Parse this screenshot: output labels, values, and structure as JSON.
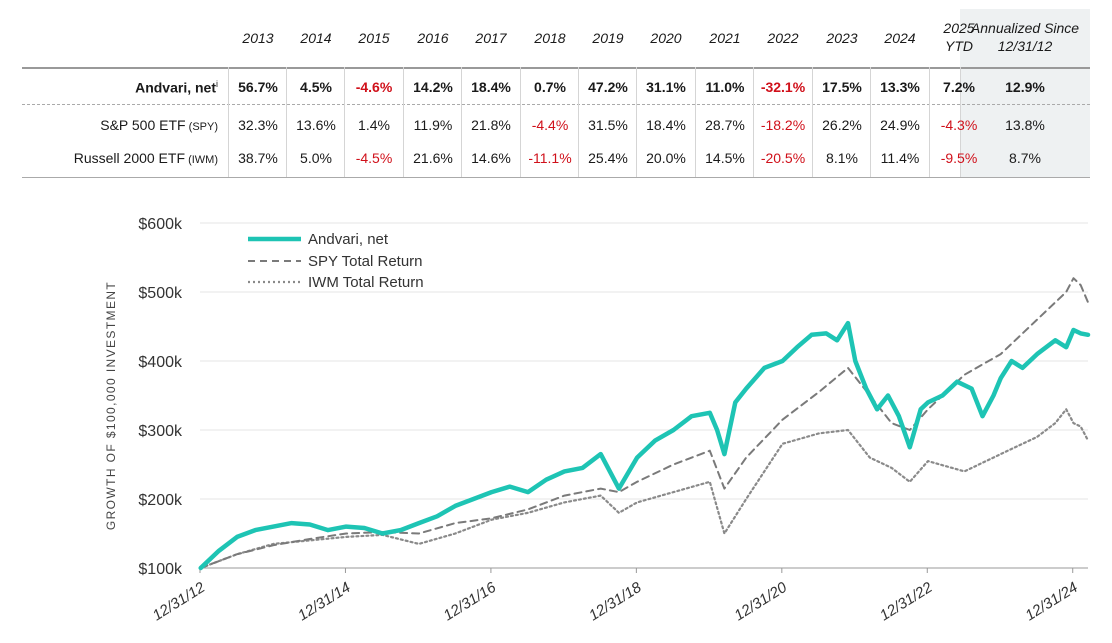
{
  "table": {
    "columns": [
      "2013",
      "2014",
      "2015",
      "2016",
      "2017",
      "2018",
      "2019",
      "2020",
      "2021",
      "2022",
      "2023",
      "2024"
    ],
    "ytd_col": {
      "line1": "2025",
      "line2": "YTD"
    },
    "annual_col": {
      "line1": "Annualized Since",
      "line2": "12/31/12"
    },
    "rows": [
      {
        "label": "Andvari, net",
        "sup": "i",
        "bold": true,
        "values": [
          "56.7%",
          "4.5%",
          "-4.6%",
          "14.2%",
          "18.4%",
          "0.7%",
          "47.2%",
          "31.1%",
          "11.0%",
          "-32.1%",
          "17.5%",
          "13.3%",
          "7.2%"
        ],
        "annual": "12.9%"
      },
      {
        "label": "S&P 500 ETF",
        "small": "(SPY)",
        "bold": false,
        "values": [
          "32.3%",
          "13.6%",
          "1.4%",
          "11.9%",
          "21.8%",
          "-4.4%",
          "31.5%",
          "18.4%",
          "28.7%",
          "-18.2%",
          "26.2%",
          "24.9%",
          "-4.3%"
        ],
        "annual": "13.8%"
      },
      {
        "label": "Russell 2000 ETF",
        "small": "(IWM)",
        "bold": false,
        "values": [
          "38.7%",
          "5.0%",
          "-4.5%",
          "21.6%",
          "14.6%",
          "-11.1%",
          "25.4%",
          "20.0%",
          "14.5%",
          "-20.5%",
          "8.1%",
          "11.4%",
          "-9.5%"
        ],
        "annual": "8.7%"
      }
    ],
    "neg_color": "#d0101a"
  },
  "chart_data": {
    "type": "line",
    "ylabel": "GROWTH OF $100,000 INVESTMENT",
    "ylim": [
      100000,
      600000
    ],
    "yticks": [
      100000,
      200000,
      300000,
      400000,
      500000,
      600000
    ],
    "ytick_labels": [
      "$100k",
      "$200k",
      "$300k",
      "$400k",
      "$500k",
      "$600k"
    ],
    "xticks": [
      2012.99,
      2014.99,
      2016.99,
      2018.99,
      2020.99,
      2022.99,
      2024.99
    ],
    "xtick_labels": [
      "12/31/12",
      "12/31/14",
      "12/31/16",
      "12/31/18",
      "12/31/20",
      "12/31/22",
      "12/31/24"
    ],
    "xlim": [
      2012.99,
      2025.2
    ],
    "legend_position": "top-left",
    "series": [
      {
        "name": "Andvari, net",
        "color": "#1ec4b4",
        "style": "solid",
        "x": [
          2013.0,
          2013.25,
          2013.5,
          2013.75,
          2014.0,
          2014.25,
          2014.5,
          2014.75,
          2015.0,
          2015.25,
          2015.5,
          2015.75,
          2016.0,
          2016.25,
          2016.5,
          2016.75,
          2017.0,
          2017.25,
          2017.5,
          2017.75,
          2018.0,
          2018.25,
          2018.5,
          2018.75,
          2019.0,
          2019.25,
          2019.5,
          2019.75,
          2020.0,
          2020.1,
          2020.2,
          2020.35,
          2020.5,
          2020.75,
          2021.0,
          2021.2,
          2021.4,
          2021.6,
          2021.75,
          2021.9,
          2022.0,
          2022.15,
          2022.3,
          2022.45,
          2022.6,
          2022.75,
          2022.9,
          2023.0,
          2023.2,
          2023.4,
          2023.6,
          2023.75,
          2023.9,
          2024.0,
          2024.15,
          2024.3,
          2024.5,
          2024.75,
          2024.9,
          2025.0,
          2025.1,
          2025.2
        ],
        "values": [
          100000,
          125000,
          145000,
          155000,
          160000,
          165000,
          163000,
          155000,
          160000,
          158000,
          150000,
          155000,
          165000,
          175000,
          190000,
          200000,
          210000,
          218000,
          210000,
          228000,
          240000,
          245000,
          265000,
          215000,
          260000,
          285000,
          300000,
          320000,
          325000,
          300000,
          265000,
          340000,
          360000,
          390000,
          400000,
          420000,
          438000,
          440000,
          430000,
          455000,
          400000,
          360000,
          330000,
          350000,
          320000,
          275000,
          330000,
          340000,
          350000,
          370000,
          360000,
          320000,
          350000,
          375000,
          400000,
          390000,
          410000,
          430000,
          420000,
          445000,
          440000,
          438000
        ]
      },
      {
        "name": "SPY Total Return",
        "color": "#7a7a7a",
        "style": "dashed",
        "x": [
          2013.0,
          2013.5,
          2014.0,
          2014.5,
          2015.0,
          2015.5,
          2016.0,
          2016.5,
          2017.0,
          2017.5,
          2018.0,
          2018.5,
          2018.75,
          2019.0,
          2019.5,
          2020.0,
          2020.2,
          2020.5,
          2021.0,
          2021.5,
          2021.9,
          2022.2,
          2022.5,
          2022.75,
          2023.0,
          2023.5,
          2024.0,
          2024.5,
          2024.9,
          2025.0,
          2025.1,
          2025.2
        ],
        "values": [
          100000,
          120000,
          133000,
          142000,
          150000,
          152000,
          150000,
          165000,
          172000,
          185000,
          205000,
          215000,
          210000,
          225000,
          250000,
          270000,
          215000,
          260000,
          315000,
          355000,
          390000,
          350000,
          310000,
          300000,
          330000,
          380000,
          410000,
          460000,
          500000,
          520000,
          510000,
          485000
        ]
      },
      {
        "name": "IWM Total Return",
        "color": "#8a8a8a",
        "style": "dotted",
        "x": [
          2013.0,
          2013.5,
          2014.0,
          2014.5,
          2015.0,
          2015.5,
          2016.0,
          2016.5,
          2017.0,
          2017.5,
          2018.0,
          2018.5,
          2018.75,
          2019.0,
          2019.5,
          2020.0,
          2020.2,
          2020.5,
          2021.0,
          2021.5,
          2021.9,
          2022.2,
          2022.5,
          2022.75,
          2023.0,
          2023.5,
          2024.0,
          2024.5,
          2024.75,
          2024.9,
          2025.0,
          2025.1,
          2025.2
        ],
        "values": [
          100000,
          120000,
          135000,
          140000,
          145000,
          148000,
          135000,
          150000,
          170000,
          180000,
          195000,
          205000,
          180000,
          195000,
          210000,
          225000,
          150000,
          200000,
          280000,
          295000,
          300000,
          260000,
          245000,
          225000,
          255000,
          240000,
          265000,
          290000,
          310000,
          330000,
          310000,
          305000,
          285000
        ]
      }
    ]
  }
}
